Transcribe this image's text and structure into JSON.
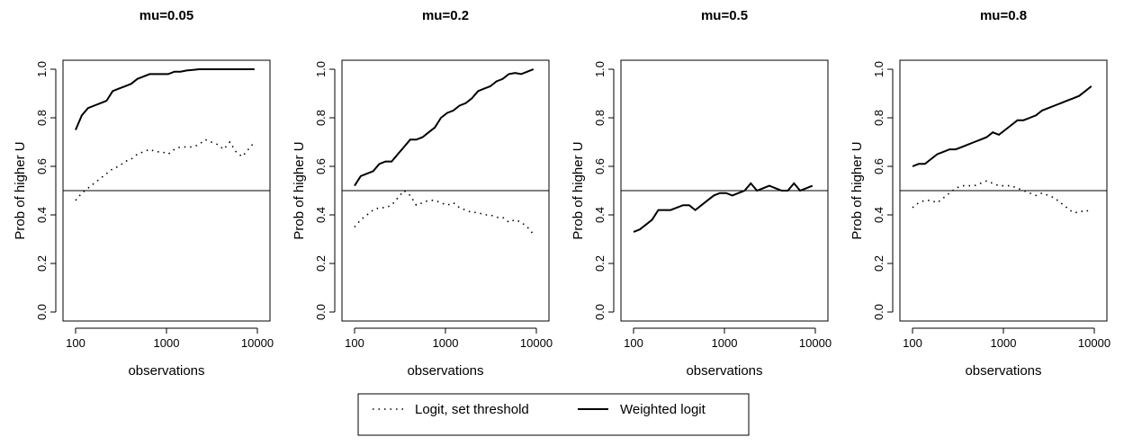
{
  "chart_data": [
    {
      "type": "line",
      "title": "mu=0.05",
      "xlabel": "observations",
      "ylabel": "Prob of higher U",
      "x_scale": "log",
      "xlim": [
        100,
        10000
      ],
      "ylim": [
        0,
        1
      ],
      "x_ticks": [
        "100",
        "1000",
        "10000"
      ],
      "y_ticks": [
        "0.0",
        "0.2",
        "0.4",
        "0.6",
        "0.8",
        "1.0"
      ],
      "reference_line_y": 0.5,
      "grid": false,
      "series": [
        {
          "name": "Logit, set threshold",
          "style": "dotted",
          "x": [
            100,
            117,
            137,
            160,
            187,
            219,
            256,
            299,
            350,
            409,
            478,
            559,
            653,
            764,
            893,
            1044,
            1221,
            1427,
            1668,
            1950,
            2280,
            2665,
            3116,
            3643,
            4259,
            4979,
            5821,
            6805,
            7955,
            9300
          ],
          "y": [
            0.46,
            0.49,
            0.51,
            0.53,
            0.55,
            0.57,
            0.59,
            0.6,
            0.62,
            0.63,
            0.65,
            0.66,
            0.67,
            0.66,
            0.66,
            0.65,
            0.67,
            0.68,
            0.68,
            0.68,
            0.69,
            0.71,
            0.7,
            0.69,
            0.67,
            0.7,
            0.66,
            0.64,
            0.67,
            0.7
          ]
        },
        {
          "name": "Weighted logit",
          "style": "solid",
          "x": [
            100,
            117,
            137,
            160,
            187,
            219,
            256,
            299,
            350,
            409,
            478,
            559,
            653,
            764,
            893,
            1044,
            1221,
            1427,
            1668,
            1950,
            2280,
            2665,
            3116,
            3643,
            4259,
            4979,
            5821,
            6805,
            7955,
            9300
          ],
          "y": [
            0.75,
            0.81,
            0.84,
            0.85,
            0.86,
            0.87,
            0.91,
            0.92,
            0.93,
            0.94,
            0.96,
            0.97,
            0.98,
            0.98,
            0.98,
            0.98,
            0.99,
            0.99,
            0.995,
            0.997,
            1.0,
            1.0,
            1.0,
            1.0,
            1.0,
            1.0,
            1.0,
            1.0,
            1.0,
            1.0
          ]
        }
      ]
    },
    {
      "type": "line",
      "title": "mu=0.2",
      "xlabel": "observations",
      "ylabel": "Prob of higher U",
      "x_scale": "log",
      "xlim": [
        100,
        10000
      ],
      "ylim": [
        0,
        1
      ],
      "x_ticks": [
        "100",
        "1000",
        "10000"
      ],
      "y_ticks": [
        "0.0",
        "0.2",
        "0.4",
        "0.6",
        "0.8",
        "1.0"
      ],
      "reference_line_y": 0.5,
      "grid": false,
      "series": [
        {
          "name": "Logit, set threshold",
          "style": "dotted",
          "x": [
            100,
            117,
            137,
            160,
            187,
            219,
            256,
            299,
            350,
            409,
            478,
            559,
            653,
            764,
            893,
            1044,
            1221,
            1427,
            1668,
            1950,
            2280,
            2665,
            3116,
            3643,
            4259,
            4979,
            5821,
            6805,
            7955,
            9300
          ],
          "y": [
            0.35,
            0.38,
            0.4,
            0.42,
            0.43,
            0.43,
            0.44,
            0.47,
            0.5,
            0.48,
            0.44,
            0.45,
            0.46,
            0.46,
            0.45,
            0.44,
            0.45,
            0.43,
            0.42,
            0.41,
            0.41,
            0.4,
            0.4,
            0.39,
            0.39,
            0.37,
            0.38,
            0.37,
            0.35,
            0.32
          ]
        },
        {
          "name": "Weighted logit",
          "style": "solid",
          "x": [
            100,
            117,
            137,
            160,
            187,
            219,
            256,
            299,
            350,
            409,
            478,
            559,
            653,
            764,
            893,
            1044,
            1221,
            1427,
            1668,
            1950,
            2280,
            2665,
            3116,
            3643,
            4259,
            4979,
            5821,
            6805,
            7955,
            9300
          ],
          "y": [
            0.52,
            0.56,
            0.57,
            0.58,
            0.61,
            0.62,
            0.62,
            0.65,
            0.68,
            0.71,
            0.71,
            0.72,
            0.74,
            0.76,
            0.8,
            0.82,
            0.83,
            0.85,
            0.86,
            0.88,
            0.91,
            0.92,
            0.93,
            0.95,
            0.96,
            0.98,
            0.985,
            0.98,
            0.99,
            1.0
          ]
        }
      ]
    },
    {
      "type": "line",
      "title": "mu=0.5",
      "xlabel": "observations",
      "ylabel": "Prob of higher U",
      "x_scale": "log",
      "xlim": [
        100,
        10000
      ],
      "ylim": [
        0,
        1
      ],
      "x_ticks": [
        "100",
        "1000",
        "10000"
      ],
      "y_ticks": [
        "0.0",
        "0.2",
        "0.4",
        "0.6",
        "0.8",
        "1.0"
      ],
      "reference_line_y": 0.5,
      "grid": false,
      "series": [
        {
          "name": "Weighted logit",
          "style": "solid",
          "x": [
            100,
            117,
            137,
            160,
            187,
            219,
            256,
            299,
            350,
            409,
            478,
            559,
            653,
            764,
            893,
            1044,
            1221,
            1427,
            1668,
            1950,
            2280,
            2665,
            3116,
            3643,
            4259,
            4979,
            5821,
            6805,
            7955,
            9300
          ],
          "y": [
            0.33,
            0.34,
            0.36,
            0.38,
            0.42,
            0.42,
            0.42,
            0.43,
            0.44,
            0.44,
            0.42,
            0.44,
            0.46,
            0.48,
            0.49,
            0.49,
            0.48,
            0.49,
            0.5,
            0.53,
            0.5,
            0.51,
            0.52,
            0.51,
            0.5,
            0.5,
            0.53,
            0.5,
            0.51,
            0.52
          ]
        }
      ]
    },
    {
      "type": "line",
      "title": "mu=0.8",
      "xlabel": "observations",
      "ylabel": "Prob of higher U",
      "x_scale": "log",
      "xlim": [
        100,
        10000
      ],
      "ylim": [
        0,
        1
      ],
      "x_ticks": [
        "100",
        "1000",
        "10000"
      ],
      "y_ticks": [
        "0.0",
        "0.2",
        "0.4",
        "0.6",
        "0.8",
        "1.0"
      ],
      "reference_line_y": 0.5,
      "grid": false,
      "series": [
        {
          "name": "Logit, set threshold",
          "style": "dotted",
          "x": [
            100,
            117,
            137,
            160,
            187,
            219,
            256,
            299,
            350,
            409,
            478,
            559,
            653,
            764,
            893,
            1044,
            1221,
            1427,
            1668,
            1950,
            2280,
            2665,
            3116,
            3643,
            4259,
            4979,
            5821,
            6805,
            7955,
            9300
          ],
          "y": [
            0.43,
            0.45,
            0.46,
            0.46,
            0.45,
            0.47,
            0.49,
            0.51,
            0.52,
            0.52,
            0.52,
            0.53,
            0.54,
            0.53,
            0.52,
            0.52,
            0.52,
            0.51,
            0.5,
            0.49,
            0.48,
            0.49,
            0.48,
            0.47,
            0.45,
            0.43,
            0.41,
            0.41,
            0.42,
            0.41
          ]
        },
        {
          "name": "Weighted logit",
          "style": "solid",
          "x": [
            100,
            117,
            137,
            160,
            187,
            219,
            256,
            299,
            350,
            409,
            478,
            559,
            653,
            764,
            893,
            1044,
            1221,
            1427,
            1668,
            1950,
            2280,
            2665,
            3116,
            3643,
            4259,
            4979,
            5821,
            6805,
            7955,
            9300
          ],
          "y": [
            0.6,
            0.61,
            0.61,
            0.63,
            0.65,
            0.66,
            0.67,
            0.67,
            0.68,
            0.69,
            0.7,
            0.71,
            0.72,
            0.74,
            0.73,
            0.75,
            0.77,
            0.79,
            0.79,
            0.8,
            0.81,
            0.83,
            0.84,
            0.85,
            0.86,
            0.87,
            0.88,
            0.89,
            0.91,
            0.93
          ]
        }
      ]
    }
  ],
  "legend": {
    "placement": "bottom-center",
    "entries": [
      {
        "label": "Logit, set threshold",
        "style": "dotted"
      },
      {
        "label": "Weighted logit",
        "style": "solid"
      }
    ]
  }
}
